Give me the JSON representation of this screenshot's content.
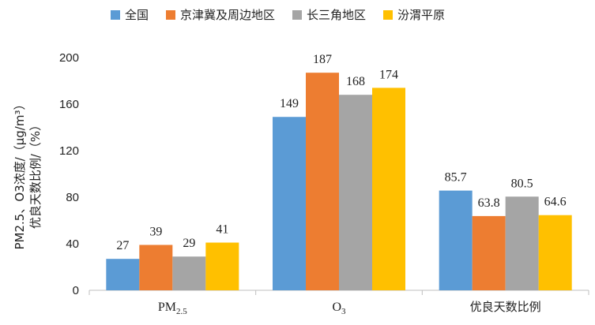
{
  "chart_data": {
    "type": "bar",
    "categories": [
      "PM2.5",
      "O3",
      "优良天数比例"
    ],
    "series": [
      {
        "name": "全国",
        "values": [
          27,
          149,
          85.7
        ],
        "color": "#5B9BD5"
      },
      {
        "name": "京津冀及周边地区",
        "values": [
          39,
          187,
          63.8
        ],
        "color": "#ED7D31"
      },
      {
        "name": "长三角地区",
        "values": [
          29,
          168,
          80.5
        ],
        "color": "#A5A5A5"
      },
      {
        "name": "汾渭平原",
        "values": [
          41,
          174,
          64.6
        ],
        "color": "#FFC000"
      }
    ],
    "ylabel_line1": "PM2.5、O3浓度/（μg/m³）",
    "ylabel_line2": "优良天数比例/（%）",
    "ylim": [
      0,
      200
    ],
    "yticks": [
      0,
      40,
      80,
      120,
      160,
      200
    ],
    "grid": false,
    "legend_position": "top"
  }
}
